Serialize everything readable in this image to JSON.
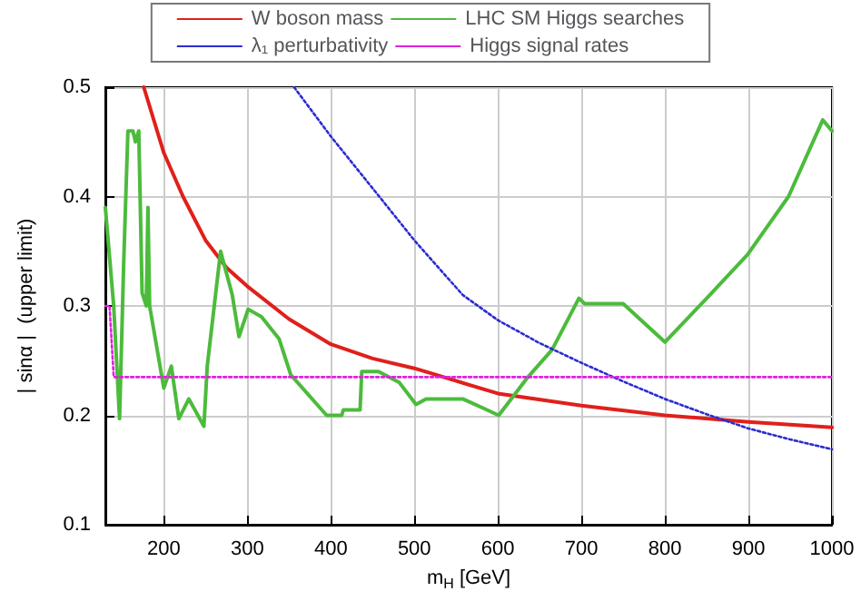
{
  "chart_data": {
    "type": "line",
    "xlabel": "m$_{H}$ [GeV]",
    "ylabel": "| sinα |  (upper limit)",
    "xlim": [
      130,
      1000
    ],
    "xticks": [
      200,
      300,
      400,
      500,
      600,
      700,
      800,
      900,
      1000
    ],
    "ylim": [
      0.1,
      0.5
    ],
    "yticks": [
      0.1,
      0.2,
      0.3,
      0.4,
      0.5
    ],
    "grid": true,
    "legend": "top",
    "marker": "none",
    "series": [
      {
        "name": "W boson mass",
        "color": "#e0201b",
        "line_style": "solid",
        "x": [
          176,
          200,
          223,
          250,
          275,
          300,
          350,
          400,
          450,
          500,
          600,
          700,
          800,
          900,
          1000
        ],
        "values": [
          0.5,
          0.44,
          0.4,
          0.36,
          0.335,
          0.318,
          0.288,
          0.265,
          0.252,
          0.243,
          0.22,
          0.209,
          0.2,
          0.194,
          0.189
        ]
      },
      {
        "name": "LHC SM Higgs searches",
        "color": "#4cbb3c",
        "line_style": "solid",
        "x": [
          130,
          140,
          147,
          152,
          157,
          163,
          166,
          170,
          174,
          179,
          181,
          183,
          200,
          209,
          218,
          230,
          248,
          252,
          268,
          282,
          290,
          301,
          317,
          338,
          352,
          395,
          413,
          415,
          435,
          437,
          457,
          482,
          502,
          514,
          558,
          587,
          601,
          611,
          636,
          665,
          697,
          704,
          750,
          800,
          850,
          899,
          948,
          989,
          1000
        ],
        "values": [
          0.39,
          0.3,
          0.197,
          0.34,
          0.46,
          0.46,
          0.45,
          0.46,
          0.312,
          0.3,
          0.39,
          0.3,
          0.225,
          0.245,
          0.197,
          0.215,
          0.19,
          0.245,
          0.35,
          0.31,
          0.272,
          0.297,
          0.29,
          0.27,
          0.237,
          0.2,
          0.2,
          0.205,
          0.205,
          0.24,
          0.24,
          0.23,
          0.21,
          0.215,
          0.215,
          0.205,
          0.2,
          0.21,
          0.235,
          0.26,
          0.307,
          0.302,
          0.302,
          0.267,
          0.307,
          0.347,
          0.4,
          0.47,
          0.46
        ]
      },
      {
        "name": "λ₁ perturbativity",
        "color": "#2b2bd0",
        "line_style": "dotted",
        "x": [
          356,
          400,
          458,
          500,
          558,
          600,
          650,
          700,
          750,
          800,
          850,
          900,
          950,
          1000
        ],
        "values": [
          0.5,
          0.455,
          0.4,
          0.36,
          0.31,
          0.287,
          0.266,
          0.248,
          0.231,
          0.215,
          0.201,
          0.188,
          0.178,
          0.169
        ]
      },
      {
        "name": "Higgs signal rates",
        "color": "#e020e0",
        "line_style": "dotted",
        "x": [
          130,
          135,
          140,
          1000
        ],
        "values": [
          0.3,
          0.3,
          0.235,
          0.235
        ]
      }
    ]
  }
}
